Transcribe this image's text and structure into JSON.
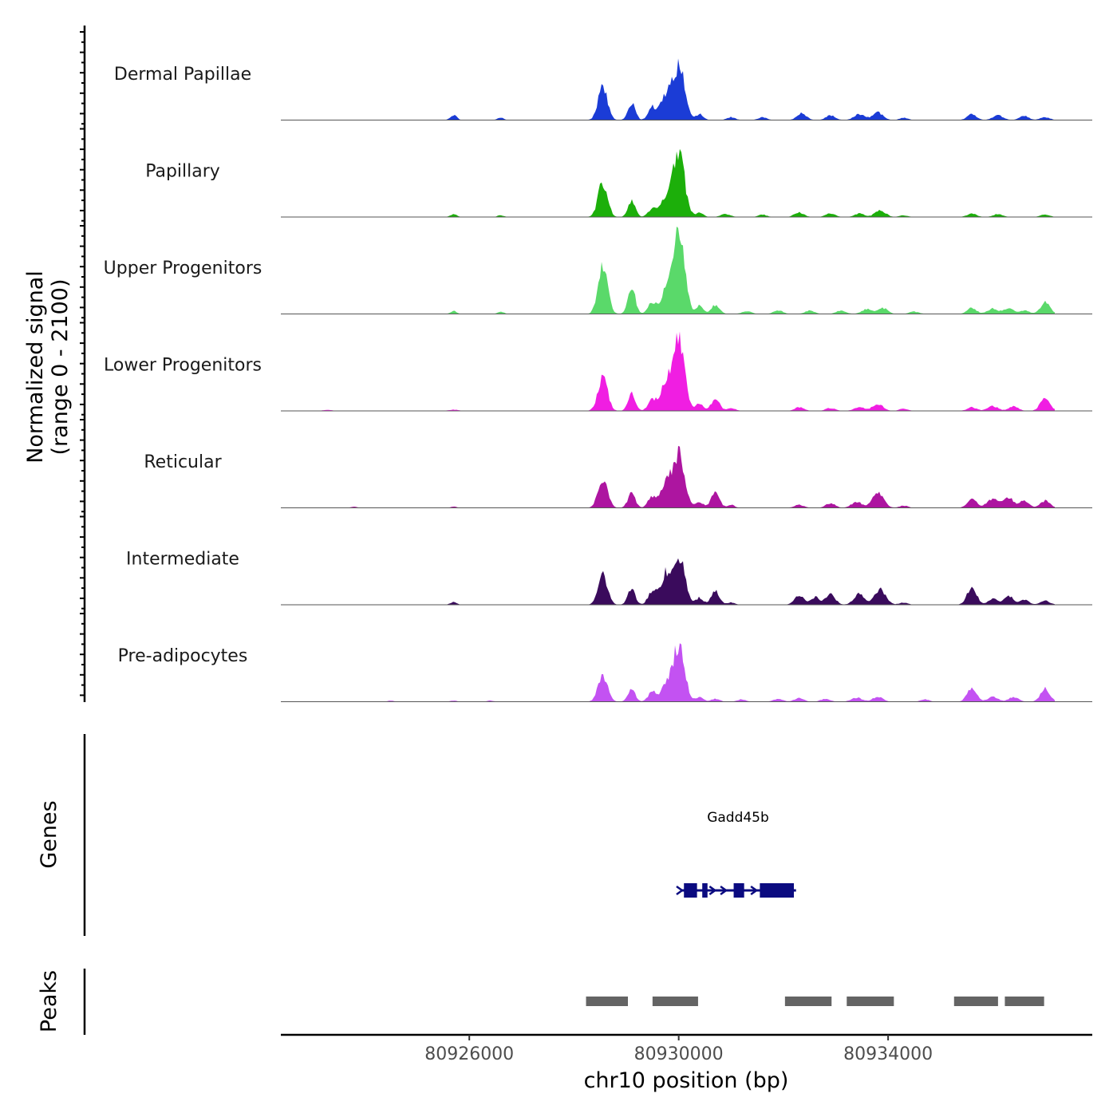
{
  "chart_data": {
    "type": "area",
    "title": "",
    "ylabel_line1": "Normalized signal",
    "ylabel_line2": "(range 0 - 2100)",
    "yrange": [
      0,
      2100
    ],
    "xlabel": "chr10 position (bp)",
    "xlim": [
      80922400,
      80937900
    ],
    "xticks": [
      80926000,
      80930000,
      80934000
    ],
    "xtick_labels": [
      "80926000",
      "80930000",
      "80934000"
    ],
    "genes_label": "Genes",
    "peaks_label": "Peaks",
    "baseline_color": "#555555",
    "tracks": [
      {
        "name": "Dermal Papillae",
        "color": "#1b3cd6",
        "scale": 1.0,
        "bumps": [
          [
            80925700,
            60,
            0.9
          ],
          [
            80926600,
            60,
            0.4
          ],
          [
            80928550,
            90,
            5.5
          ],
          [
            80929100,
            70,
            3.0
          ],
          [
            80929500,
            80,
            2.2
          ],
          [
            80929750,
            90,
            4.0
          ],
          [
            80930000,
            110,
            9.5
          ],
          [
            80930400,
            70,
            1.0
          ],
          [
            80931000,
            80,
            0.5
          ],
          [
            80931600,
            80,
            0.5
          ],
          [
            80932350,
            90,
            1.2
          ],
          [
            80932900,
            90,
            0.8
          ],
          [
            80933450,
            100,
            1.0
          ],
          [
            80933800,
            100,
            1.3
          ],
          [
            80934300,
            80,
            0.4
          ],
          [
            80935600,
            90,
            1.0
          ],
          [
            80936100,
            100,
            0.8
          ],
          [
            80936600,
            90,
            0.7
          ],
          [
            80937000,
            90,
            0.5
          ]
        ]
      },
      {
        "name": "Papillary",
        "color": "#1caf0a",
        "scale": 1.0,
        "bumps": [
          [
            80925700,
            60,
            0.5
          ],
          [
            80926600,
            60,
            0.3
          ],
          [
            80928550,
            90,
            5.8
          ],
          [
            80929100,
            70,
            2.8
          ],
          [
            80929500,
            80,
            1.5
          ],
          [
            80929750,
            90,
            3.0
          ],
          [
            80930000,
            110,
            11.0
          ],
          [
            80930400,
            70,
            0.8
          ],
          [
            80930900,
            90,
            0.5
          ],
          [
            80931600,
            80,
            0.4
          ],
          [
            80932300,
            90,
            0.8
          ],
          [
            80932900,
            90,
            0.6
          ],
          [
            80933450,
            90,
            0.6
          ],
          [
            80933850,
            100,
            1.2
          ],
          [
            80934300,
            80,
            0.3
          ],
          [
            80935600,
            90,
            0.6
          ],
          [
            80936100,
            90,
            0.5
          ],
          [
            80937000,
            90,
            0.4
          ]
        ]
      },
      {
        "name": "Upper Progenitors",
        "color": "#5ad96a",
        "scale": 1.0,
        "bumps": [
          [
            80925700,
            60,
            0.5
          ],
          [
            80926600,
            60,
            0.4
          ],
          [
            80928550,
            90,
            8.5
          ],
          [
            80929100,
            70,
            4.5
          ],
          [
            80929500,
            80,
            2.0
          ],
          [
            80929750,
            90,
            3.5
          ],
          [
            80930000,
            110,
            14.5
          ],
          [
            80930400,
            70,
            1.5
          ],
          [
            80930700,
            80,
            1.5
          ],
          [
            80931300,
            90,
            0.5
          ],
          [
            80931900,
            90,
            0.6
          ],
          [
            80932500,
            90,
            0.6
          ],
          [
            80933100,
            90,
            0.6
          ],
          [
            80933600,
            100,
            0.8
          ],
          [
            80933900,
            90,
            1.0
          ],
          [
            80934500,
            90,
            0.4
          ],
          [
            80935600,
            90,
            1.0
          ],
          [
            80936000,
            100,
            0.9
          ],
          [
            80936300,
            90,
            1.0
          ],
          [
            80936600,
            90,
            0.6
          ],
          [
            80937000,
            90,
            2.0
          ]
        ]
      },
      {
        "name": "Lower Progenitors",
        "color": "#f01ee2",
        "scale": 1.0,
        "bumps": [
          [
            80923300,
            100,
            0.15
          ],
          [
            80925700,
            100,
            0.2
          ],
          [
            80928550,
            90,
            6.0
          ],
          [
            80929100,
            70,
            3.0
          ],
          [
            80929500,
            80,
            2.0
          ],
          [
            80929750,
            90,
            4.5
          ],
          [
            80930000,
            110,
            12.5
          ],
          [
            80930400,
            70,
            1.3
          ],
          [
            80930700,
            80,
            2.0
          ],
          [
            80931000,
            80,
            0.5
          ],
          [
            80932300,
            90,
            0.6
          ],
          [
            80932900,
            90,
            0.5
          ],
          [
            80933450,
            100,
            0.6
          ],
          [
            80933800,
            100,
            1.2
          ],
          [
            80934300,
            80,
            0.4
          ],
          [
            80935600,
            90,
            0.6
          ],
          [
            80936000,
            100,
            0.8
          ],
          [
            80936400,
            90,
            0.8
          ],
          [
            80937000,
            90,
            2.3
          ]
        ]
      },
      {
        "name": "Reticular",
        "color": "#ad15a0",
        "scale": 1.0,
        "bumps": [
          [
            80923800,
            60,
            0.2
          ],
          [
            80925700,
            60,
            0.2
          ],
          [
            80928550,
            90,
            5.0
          ],
          [
            80929100,
            70,
            2.5
          ],
          [
            80929500,
            80,
            2.0
          ],
          [
            80929750,
            90,
            4.0
          ],
          [
            80930000,
            110,
            9.5
          ],
          [
            80930400,
            70,
            1.0
          ],
          [
            80930700,
            80,
            2.5
          ],
          [
            80931000,
            70,
            0.5
          ],
          [
            80932300,
            90,
            0.5
          ],
          [
            80932900,
            90,
            0.8
          ],
          [
            80933400,
            100,
            1.0
          ],
          [
            80933800,
            110,
            2.5
          ],
          [
            80934300,
            80,
            0.4
          ],
          [
            80935600,
            90,
            1.5
          ],
          [
            80936000,
            110,
            1.5
          ],
          [
            80936300,
            90,
            1.8
          ],
          [
            80936600,
            90,
            1.2
          ],
          [
            80937000,
            90,
            1.2
          ]
        ]
      },
      {
        "name": "Intermediate",
        "color": "#3a0b5c",
        "scale": 1.0,
        "bumps": [
          [
            80925700,
            60,
            0.5
          ],
          [
            80928550,
            90,
            5.0
          ],
          [
            80929100,
            70,
            2.7
          ],
          [
            80929500,
            80,
            2.5
          ],
          [
            80929750,
            90,
            5.0
          ],
          [
            80930000,
            110,
            8.5
          ],
          [
            80930400,
            70,
            1.2
          ],
          [
            80930700,
            80,
            2.3
          ],
          [
            80931000,
            70,
            0.4
          ],
          [
            80932300,
            90,
            1.5
          ],
          [
            80932600,
            90,
            1.3
          ],
          [
            80932900,
            90,
            1.8
          ],
          [
            80933450,
            100,
            2.0
          ],
          [
            80933850,
            110,
            2.6
          ],
          [
            80934300,
            80,
            0.4
          ],
          [
            80935600,
            90,
            3.0
          ],
          [
            80936000,
            90,
            1.0
          ],
          [
            80936300,
            90,
            1.5
          ],
          [
            80936600,
            90,
            0.8
          ],
          [
            80937000,
            90,
            0.7
          ]
        ]
      },
      {
        "name": "Pre-adipocytes",
        "color": "#c352f2",
        "scale": 1.0,
        "bumps": [
          [
            80924500,
            60,
            0.2
          ],
          [
            80925700,
            60,
            0.2
          ],
          [
            80926400,
            60,
            0.2
          ],
          [
            80928550,
            90,
            4.5
          ],
          [
            80929100,
            70,
            2.2
          ],
          [
            80929500,
            80,
            1.7
          ],
          [
            80929750,
            90,
            2.5
          ],
          [
            80930000,
            110,
            10.0
          ],
          [
            80930400,
            70,
            0.8
          ],
          [
            80930700,
            80,
            0.5
          ],
          [
            80931200,
            80,
            0.4
          ],
          [
            80931900,
            90,
            0.5
          ],
          [
            80932300,
            90,
            0.6
          ],
          [
            80932800,
            90,
            0.5
          ],
          [
            80933400,
            100,
            0.7
          ],
          [
            80933800,
            100,
            0.8
          ],
          [
            80934700,
            80,
            0.4
          ],
          [
            80935600,
            90,
            2.2
          ],
          [
            80936000,
            100,
            0.8
          ],
          [
            80936400,
            90,
            0.8
          ],
          [
            80937000,
            90,
            2.2
          ]
        ]
      }
    ],
    "genes": [
      {
        "name": "Gadd45b",
        "start": 80930050,
        "end": 80932150,
        "strand": "+",
        "color": "#0b0b80",
        "exons": [
          [
            80930100,
            80930350
          ],
          [
            80930450,
            80930550
          ],
          [
            80931050,
            80931250
          ],
          [
            80931550,
            80932200
          ]
        ]
      }
    ],
    "peaks": [
      {
        "start": 80928230,
        "end": 80929030
      },
      {
        "start": 80929500,
        "end": 80930370
      },
      {
        "start": 80932030,
        "end": 80932920
      },
      {
        "start": 80933210,
        "end": 80934110
      },
      {
        "start": 80935260,
        "end": 80936100
      },
      {
        "start": 80936230,
        "end": 80936980
      }
    ],
    "peak_color": "#646464"
  }
}
